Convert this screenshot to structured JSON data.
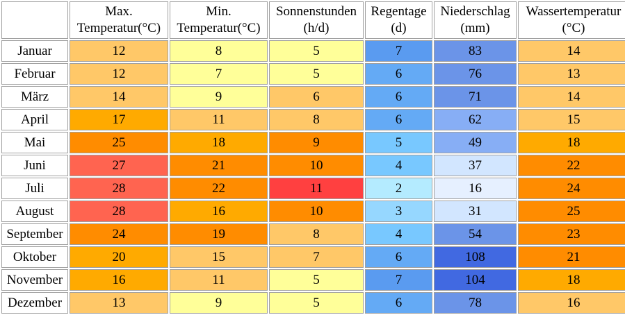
{
  "table": {
    "headers": [
      "",
      "Max. Temperatur(°C)",
      "Min. Temperatur(°C)",
      "Sonnenstunden (h/d)",
      "Regentage (d)",
      "Niederschlag (mm)",
      "Wassertemperatur (°C)"
    ],
    "header_lines": [
      [
        "",
        ""
      ],
      [
        "Max.",
        "Temperatur(°C)"
      ],
      [
        "Min.",
        "Temperatur(°C)"
      ],
      [
        "Sonnenstunden",
        "(h/d)"
      ],
      [
        "Regentage",
        "(d)"
      ],
      [
        "Niederschlag",
        "(mm)"
      ],
      [
        "Wassertemperatur",
        "(°C)"
      ]
    ],
    "rows": [
      {
        "month": "Januar",
        "values": [
          "12",
          "8",
          "5",
          "7",
          "83",
          "14"
        ],
        "colors": [
          "#ffc868",
          "#ffff99",
          "#ffff99",
          "#5a9bf0",
          "#6b94e8",
          "#ffc868"
        ]
      },
      {
        "month": "Februar",
        "values": [
          "12",
          "7",
          "5",
          "6",
          "76",
          "13"
        ],
        "colors": [
          "#ffc868",
          "#ffff99",
          "#ffff99",
          "#64aaf5",
          "#6b94e8",
          "#ffc868"
        ]
      },
      {
        "month": "März",
        "values": [
          "14",
          "9",
          "6",
          "6",
          "71",
          "14"
        ],
        "colors": [
          "#ffc868",
          "#ffff99",
          "#ffc868",
          "#64aaf5",
          "#6b94e8",
          "#ffc868"
        ]
      },
      {
        "month": "April",
        "values": [
          "17",
          "11",
          "8",
          "6",
          "62",
          "15"
        ],
        "colors": [
          "#ffaa00",
          "#ffc868",
          "#ffc868",
          "#64aaf5",
          "#87aef5",
          "#ffc868"
        ]
      },
      {
        "month": "Mai",
        "values": [
          "25",
          "18",
          "9",
          "5",
          "49",
          "18"
        ],
        "colors": [
          "#ff8c00",
          "#ffaa00",
          "#ff8c00",
          "#78c8ff",
          "#87aef5",
          "#ffaa00"
        ]
      },
      {
        "month": "Juni",
        "values": [
          "27",
          "21",
          "10",
          "4",
          "37",
          "22"
        ],
        "colors": [
          "#ff6450",
          "#ff8c00",
          "#ff8c00",
          "#78c8ff",
          "#d2e6ff",
          "#ff8c00"
        ]
      },
      {
        "month": "Juli",
        "values": [
          "28",
          "22",
          "11",
          "2",
          "16",
          "24"
        ],
        "colors": [
          "#ff6450",
          "#ff8c00",
          "#ff4040",
          "#b4ebff",
          "#e6f0ff",
          "#ff8c00"
        ]
      },
      {
        "month": "August",
        "values": [
          "28",
          "16",
          "10",
          "3",
          "31",
          "25"
        ],
        "colors": [
          "#ff6450",
          "#ffaa00",
          "#ff8c00",
          "#96d7ff",
          "#d2e6ff",
          "#ff8c00"
        ]
      },
      {
        "month": "September",
        "values": [
          "24",
          "19",
          "8",
          "4",
          "54",
          "23"
        ],
        "colors": [
          "#ff8c00",
          "#ff8c00",
          "#ffc868",
          "#78c8ff",
          "#6b94e8",
          "#ff8c00"
        ]
      },
      {
        "month": "Oktober",
        "values": [
          "20",
          "15",
          "7",
          "6",
          "108",
          "21"
        ],
        "colors": [
          "#ffaa00",
          "#ffc868",
          "#ffc868",
          "#64aaf5",
          "#4169e1",
          "#ff8c00"
        ]
      },
      {
        "month": "November",
        "values": [
          "16",
          "11",
          "5",
          "7",
          "104",
          "18"
        ],
        "colors": [
          "#ffaa00",
          "#ffc868",
          "#ffff99",
          "#5a9bf0",
          "#4169e1",
          "#ffaa00"
        ]
      },
      {
        "month": "Dezember",
        "values": [
          "13",
          "9",
          "5",
          "6",
          "78",
          "16"
        ],
        "colors": [
          "#ffc868",
          "#ffff99",
          "#ffff99",
          "#64aaf5",
          "#6b94e8",
          "#ffc868"
        ]
      }
    ]
  }
}
